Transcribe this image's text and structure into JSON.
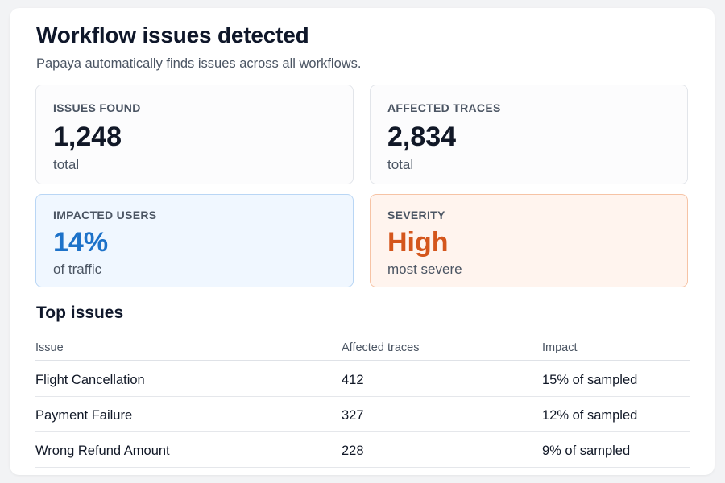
{
  "header": {
    "title": "Workflow issues detected",
    "subtitle": "Papaya automatically finds issues across all workflows."
  },
  "stats": {
    "issues_found": {
      "label": "ISSUES FOUND",
      "value": "1,248",
      "sub": "total"
    },
    "affected_traces": {
      "label": "AFFECTED TRACES",
      "value": "2,834",
      "sub": "total"
    },
    "impacted_users": {
      "label": "IMPACTED USERS",
      "value": "14%",
      "sub": "of traffic",
      "accent": "#1d72c9"
    },
    "severity": {
      "label": "SEVERITY",
      "value": "High",
      "sub": "most severe",
      "accent": "#d4561c"
    }
  },
  "top_issues": {
    "title": "Top issues",
    "columns": [
      "Issue",
      "Affected traces",
      "Impact"
    ],
    "rows": [
      {
        "issue": "Flight Cancellation",
        "traces": "412",
        "impact": "15% of sampled"
      },
      {
        "issue": "Payment Failure",
        "traces": "327",
        "impact": "12% of sampled"
      },
      {
        "issue": "Wrong Refund Amount",
        "traces": "228",
        "impact": "9% of sampled"
      }
    ]
  }
}
